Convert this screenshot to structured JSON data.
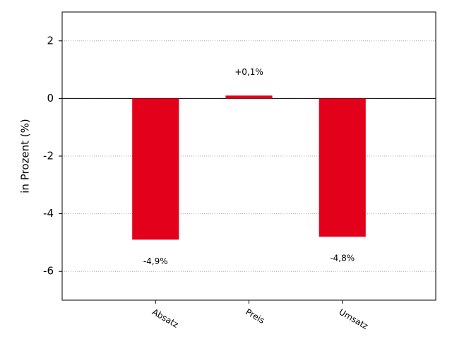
{
  "chart_data": {
    "type": "bar",
    "y_label": "in Prozent (%)",
    "categories": [
      "Absatz",
      "Preis",
      "Umsatz"
    ],
    "values": [
      -4.9,
      0.1,
      -4.8
    ],
    "value_labels": [
      "-4,9%",
      "+0,1%",
      "-4,8%"
    ],
    "color": "#e2001a",
    "ylim": [
      -7,
      3
    ],
    "yticks": [
      -6,
      -4,
      -2,
      0,
      2
    ],
    "grid": true
  }
}
